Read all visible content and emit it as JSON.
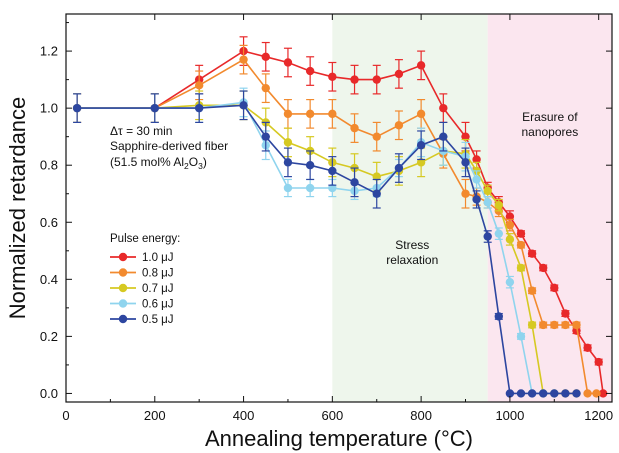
{
  "chart_data": {
    "type": "line",
    "xlabel": "Annealing temperature (°C)",
    "ylabel": "Normalized retardance",
    "xlim": [
      0,
      1230
    ],
    "ylim": [
      -0.03,
      1.33
    ],
    "x_ticks": [
      0,
      200,
      400,
      600,
      800,
      1000,
      1200
    ],
    "y_ticks": [
      0.0,
      0.2,
      0.4,
      0.6,
      0.8,
      1.0,
      1.2
    ],
    "y_tick_labels": [
      "0.0",
      "0.2",
      "0.4",
      "0.6",
      "0.8",
      "1.0",
      "1.2"
    ],
    "grid": false,
    "regions": [
      {
        "x0": 600,
        "x1": 950,
        "color": "#eef6ec",
        "label": "Stress relaxation"
      },
      {
        "x0": 950,
        "x1": 1230,
        "color": "#fbe6ef",
        "label_lines": [
          "Erasure of",
          "nanopores"
        ]
      }
    ],
    "annotation": {
      "line1": "Δτ = 30 min",
      "line2": "Sapphire-derived fiber",
      "line3_prefix": "(51.5 mol% Al",
      "line3_sub1": "2",
      "line3_mid": "O",
      "line3_sub2": "3",
      "line3_suffix": ")"
    },
    "legend_title": "Pulse energy:",
    "legend_position": "left",
    "series": [
      {
        "name": "1.0 μJ",
        "color": "#e8292a",
        "points": [
          [
            25,
            1.0
          ],
          [
            200,
            1.0
          ],
          [
            300,
            1.1
          ],
          [
            400,
            1.2
          ],
          [
            450,
            1.18
          ],
          [
            500,
            1.16
          ],
          [
            550,
            1.13
          ],
          [
            600,
            1.11
          ],
          [
            650,
            1.1
          ],
          [
            700,
            1.1
          ],
          [
            750,
            1.12
          ],
          [
            800,
            1.15
          ],
          [
            850,
            1.0
          ],
          [
            900,
            0.9
          ],
          [
            925,
            0.82
          ],
          [
            950,
            0.72
          ],
          [
            975,
            0.67
          ],
          [
            1000,
            0.62
          ],
          [
            1025,
            0.56
          ],
          [
            1050,
            0.49
          ],
          [
            1075,
            0.44
          ],
          [
            1100,
            0.37
          ],
          [
            1125,
            0.28
          ],
          [
            1150,
            0.22
          ],
          [
            1175,
            0.16
          ],
          [
            1200,
            0.11
          ],
          [
            1210,
            0.0
          ]
        ],
        "errors": [
          0.05,
          0.05,
          0.05,
          0.05,
          0.05,
          0.05,
          0.05,
          0.05,
          0.05,
          0.05,
          0.05,
          0.05,
          0.05,
          0.05,
          0.03,
          0.02,
          0.02,
          0.02,
          0.01,
          0.01,
          0.01,
          0.01,
          0.01,
          0.01,
          0.01,
          0.01,
          0.0
        ]
      },
      {
        "name": "0.8 μJ",
        "color": "#f28a2e",
        "points": [
          [
            25,
            1.0
          ],
          [
            200,
            1.0
          ],
          [
            300,
            1.08
          ],
          [
            400,
            1.17
          ],
          [
            450,
            1.07
          ],
          [
            500,
            0.98
          ],
          [
            550,
            0.98
          ],
          [
            600,
            0.98
          ],
          [
            650,
            0.93
          ],
          [
            700,
            0.9
          ],
          [
            750,
            0.94
          ],
          [
            800,
            0.98
          ],
          [
            850,
            0.84
          ],
          [
            900,
            0.7
          ],
          [
            925,
            0.69
          ],
          [
            950,
            0.67
          ],
          [
            975,
            0.64
          ],
          [
            1000,
            0.59
          ],
          [
            1025,
            0.52
          ],
          [
            1050,
            0.36
          ],
          [
            1075,
            0.24
          ],
          [
            1100,
            0.24
          ],
          [
            1125,
            0.24
          ],
          [
            1150,
            0.24
          ],
          [
            1175,
            0.0
          ],
          [
            1195,
            0.0
          ]
        ],
        "errors": [
          0.05,
          0.05,
          0.05,
          0.05,
          0.05,
          0.05,
          0.05,
          0.05,
          0.05,
          0.05,
          0.05,
          0.05,
          0.05,
          0.05,
          0.03,
          0.02,
          0.02,
          0.02,
          0.01,
          0.01,
          0.01,
          0.01,
          0.01,
          0.01,
          0.0,
          0.0
        ]
      },
      {
        "name": "0.7 μJ",
        "color": "#d6c922",
        "points": [
          [
            25,
            1.0
          ],
          [
            200,
            1.0
          ],
          [
            300,
            1.01
          ],
          [
            400,
            1.01
          ],
          [
            450,
            0.95
          ],
          [
            500,
            0.88
          ],
          [
            550,
            0.85
          ],
          [
            600,
            0.81
          ],
          [
            650,
            0.79
          ],
          [
            700,
            0.76
          ],
          [
            750,
            0.78
          ],
          [
            800,
            0.81
          ],
          [
            850,
            0.85
          ],
          [
            900,
            0.84
          ],
          [
            925,
            0.78
          ],
          [
            950,
            0.71
          ],
          [
            975,
            0.66
          ],
          [
            1000,
            0.54
          ],
          [
            1025,
            0.44
          ],
          [
            1050,
            0.24
          ],
          [
            1075,
            0.0
          ],
          [
            1100,
            0.0
          ],
          [
            1125,
            0.0
          ],
          [
            1150,
            0.0
          ]
        ],
        "errors": [
          0.05,
          0.05,
          0.05,
          0.05,
          0.05,
          0.05,
          0.05,
          0.05,
          0.05,
          0.05,
          0.05,
          0.05,
          0.05,
          0.05,
          0.03,
          0.02,
          0.02,
          0.02,
          0.01,
          0.01,
          0.0,
          0.0,
          0.0,
          0.0
        ]
      },
      {
        "name": "0.6 μJ",
        "color": "#8fd4ee",
        "points": [
          [
            25,
            1.0
          ],
          [
            200,
            1.0
          ],
          [
            300,
            1.0
          ],
          [
            400,
            1.02
          ],
          [
            450,
            0.87
          ],
          [
            500,
            0.72
          ],
          [
            550,
            0.72
          ],
          [
            600,
            0.72
          ],
          [
            650,
            0.71
          ],
          [
            700,
            0.72
          ],
          [
            750,
            0.79
          ],
          [
            800,
            0.88
          ],
          [
            850,
            0.85
          ],
          [
            900,
            0.83
          ],
          [
            925,
            0.75
          ],
          [
            950,
            0.67
          ],
          [
            975,
            0.56
          ],
          [
            1000,
            0.39
          ],
          [
            1025,
            0.2
          ],
          [
            1050,
            0.0
          ],
          [
            1075,
            0.0
          ],
          [
            1100,
            0.0
          ]
        ],
        "errors": [
          0.05,
          0.05,
          0.05,
          0.05,
          0.05,
          0.03,
          0.03,
          0.03,
          0.03,
          0.03,
          0.03,
          0.05,
          0.05,
          0.05,
          0.03,
          0.02,
          0.02,
          0.02,
          0.01,
          0.0,
          0.0,
          0.0
        ]
      },
      {
        "name": "0.5 μJ",
        "color": "#2d46a0",
        "points": [
          [
            25,
            1.0
          ],
          [
            200,
            1.0
          ],
          [
            300,
            1.0
          ],
          [
            400,
            1.01
          ],
          [
            450,
            0.9
          ],
          [
            500,
            0.81
          ],
          [
            550,
            0.8
          ],
          [
            600,
            0.78
          ],
          [
            650,
            0.74
          ],
          [
            700,
            0.7
          ],
          [
            750,
            0.79
          ],
          [
            800,
            0.87
          ],
          [
            850,
            0.9
          ],
          [
            900,
            0.81
          ],
          [
            925,
            0.68
          ],
          [
            950,
            0.55
          ],
          [
            975,
            0.27
          ],
          [
            1000,
            0.0
          ],
          [
            1025,
            0.0
          ],
          [
            1050,
            0.0
          ],
          [
            1075,
            0.0
          ],
          [
            1100,
            0.0
          ],
          [
            1125,
            0.0
          ],
          [
            1150,
            0.0
          ]
        ],
        "errors": [
          0.05,
          0.05,
          0.05,
          0.05,
          0.05,
          0.05,
          0.05,
          0.05,
          0.05,
          0.05,
          0.05,
          0.05,
          0.05,
          0.05,
          0.03,
          0.02,
          0.01,
          0.0,
          0.0,
          0.0,
          0.0,
          0.0,
          0.0,
          0.0
        ]
      }
    ]
  }
}
